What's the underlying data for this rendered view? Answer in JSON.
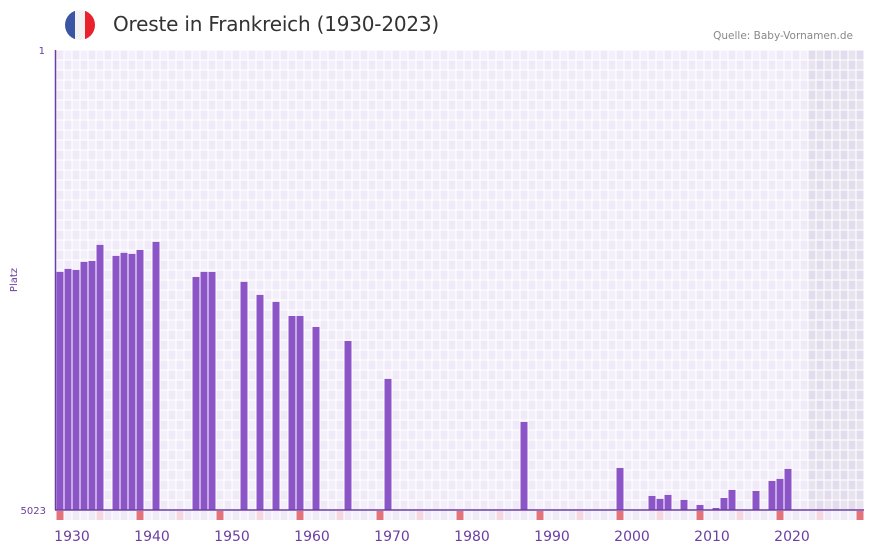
{
  "header": {
    "title": "Oreste in Frankreich (1930-2023)",
    "source": "Quelle: Baby-Vornamen.de",
    "flag_colors": [
      "#3a55a4",
      "#f2f2f2",
      "#e8212d"
    ]
  },
  "chart_data": {
    "type": "bar",
    "title": "Oreste in Frankreich (1930-2023)",
    "xlabel": "",
    "ylabel": "Platz",
    "ylim": [
      1,
      5023
    ],
    "y_inverted": true,
    "y_ticks": [
      "1",
      "5023"
    ],
    "x_range": [
      1930,
      2030
    ],
    "x_ticks": [
      1930,
      1940,
      1950,
      1960,
      1970,
      1980,
      1990,
      2000,
      2010,
      2020
    ],
    "future_shaded_from": 2024,
    "grid": true,
    "bar_color": "#8c55c7",
    "years": [
      1930,
      1931,
      1932,
      1933,
      1934,
      1935,
      1937,
      1938,
      1939,
      1940,
      1942,
      1947,
      1948,
      1949,
      1953,
      1955,
      1957,
      1959,
      1960,
      1962,
      1966,
      1971,
      1988,
      2000,
      2004,
      2005,
      2006,
      2008,
      2010,
      2012,
      2013,
      2014,
      2017,
      2019,
      2020,
      2021
    ],
    "ranks": [
      2424,
      2391,
      2402,
      2315,
      2304,
      2129,
      2249,
      2216,
      2227,
      2184,
      2096,
      2479,
      2424,
      2424,
      2533,
      2675,
      2752,
      2905,
      2905,
      3025,
      3178,
      3592,
      4062,
      4564,
      4870,
      4902,
      4859,
      4913,
      4968,
      5001,
      4892,
      4804,
      4815,
      4706,
      4684,
      4575
    ]
  }
}
